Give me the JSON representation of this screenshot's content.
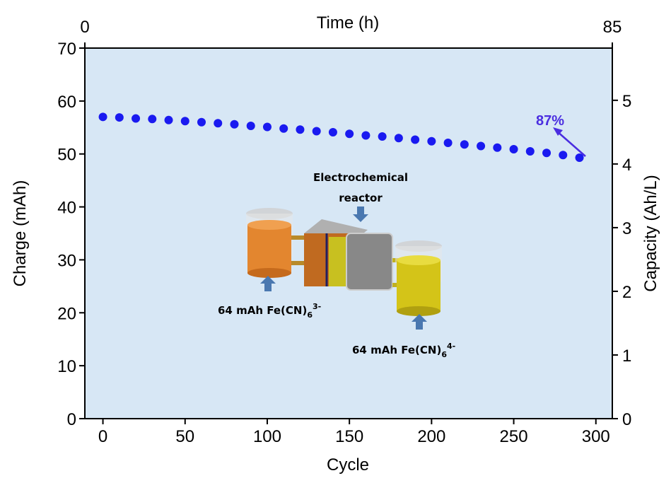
{
  "chart_data": {
    "type": "scatter",
    "xlabel": "Cycle",
    "ylabel": "Charge (mAh)",
    "y2label": "Capacity (Ah/L)",
    "x2label": "Time (h)",
    "x": [
      0,
      10,
      20,
      30,
      40,
      50,
      60,
      70,
      80,
      90,
      100,
      110,
      120,
      130,
      140,
      150,
      160,
      170,
      180,
      190,
      200,
      210,
      220,
      230,
      240,
      250,
      260,
      270,
      280,
      290
    ],
    "series": [
      {
        "name": "Charge",
        "color": "#1a1af0",
        "values": [
          57.0,
          56.9,
          56.7,
          56.6,
          56.4,
          56.2,
          56.0,
          55.8,
          55.6,
          55.3,
          55.1,
          54.8,
          54.6,
          54.3,
          54.1,
          53.8,
          53.5,
          53.3,
          53.0,
          52.7,
          52.4,
          52.1,
          51.8,
          51.5,
          51.2,
          50.9,
          50.5,
          50.2,
          49.8,
          49.3
        ]
      }
    ],
    "xlim": [
      -11,
      310
    ],
    "xticks": [
      0,
      50,
      100,
      150,
      200,
      250,
      300
    ],
    "x2lim": [
      0,
      85
    ],
    "x2ticks": [
      0,
      85
    ],
    "ylim": [
      0,
      70
    ],
    "yticks": [
      0,
      10,
      20,
      30,
      40,
      50,
      60,
      70
    ],
    "y2lim": [
      0,
      5.82
    ],
    "y2ticks": [
      0,
      1,
      2,
      3,
      4,
      5
    ],
    "background": "#d7e7f5",
    "annotation": "87%",
    "inset": {
      "reactor": [
        "Electrochemical",
        "reactor"
      ],
      "left": {
        "main": "64 mAh Fe(CN)",
        "sub": "6",
        "sup": "3-"
      },
      "right": {
        "main": "64 mAh Fe(CN)",
        "sub": "6",
        "sup": "4-"
      }
    }
  }
}
